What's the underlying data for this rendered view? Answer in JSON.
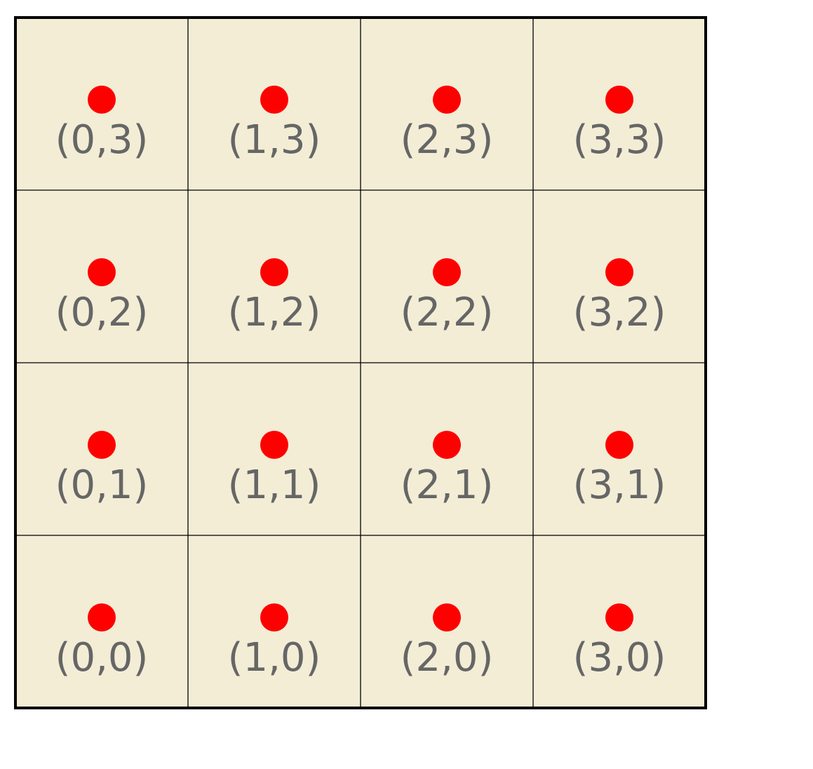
{
  "grid": {
    "columns": 4,
    "rows": 4,
    "cells": [
      {
        "label": "(0,3)",
        "col": 0,
        "row": 3
      },
      {
        "label": "(1,3)",
        "col": 1,
        "row": 3
      },
      {
        "label": "(2,3)",
        "col": 2,
        "row": 3
      },
      {
        "label": "(3,3)",
        "col": 3,
        "row": 3
      },
      {
        "label": "(0,2)",
        "col": 0,
        "row": 2
      },
      {
        "label": "(1,2)",
        "col": 1,
        "row": 2
      },
      {
        "label": "(2,2)",
        "col": 2,
        "row": 2
      },
      {
        "label": "(3,2)",
        "col": 3,
        "row": 2
      },
      {
        "label": "(0,1)",
        "col": 0,
        "row": 1
      },
      {
        "label": "(1,1)",
        "col": 1,
        "row": 1
      },
      {
        "label": "(2,1)",
        "col": 2,
        "row": 1
      },
      {
        "label": "(3,1)",
        "col": 3,
        "row": 1
      },
      {
        "label": "(0,0)",
        "col": 0,
        "row": 0
      },
      {
        "label": "(1,0)",
        "col": 1,
        "row": 0
      },
      {
        "label": "(2,0)",
        "col": 2,
        "row": 0
      },
      {
        "label": "(3,0)",
        "col": 3,
        "row": 0
      }
    ]
  },
  "colors": {
    "cell_fill": "#f3edd6",
    "grid_line": "#000000",
    "point": "#ff0000",
    "label": "#666666"
  }
}
